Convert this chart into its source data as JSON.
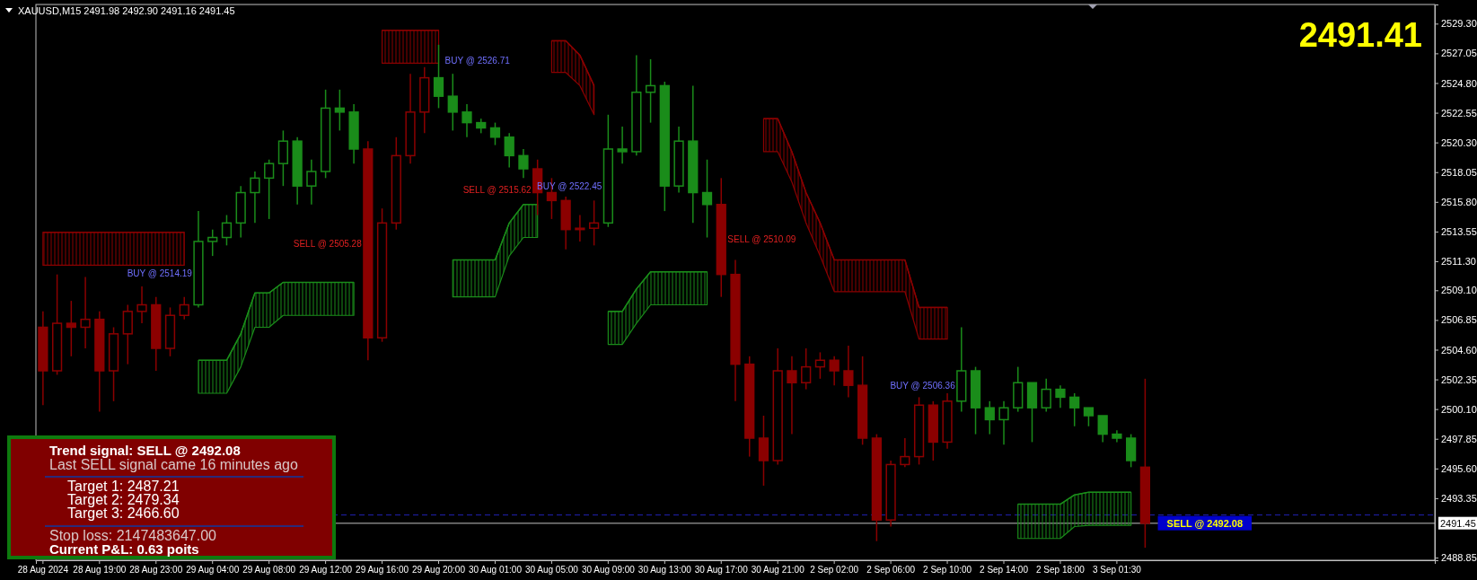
{
  "chart_data": {
    "type": "candlestick",
    "categories": [
      "28 Aug 2024",
      null,
      null,
      null,
      "28 Aug 19:00",
      null,
      null,
      null,
      "28 Aug 23:00",
      null,
      null,
      null,
      "29 Aug 04:00",
      null,
      null,
      null,
      "29 Aug 08:00",
      null,
      null,
      null,
      "29 Aug 12:00",
      null,
      null,
      null,
      "29 Aug 16:00",
      null,
      null,
      null,
      "29 Aug 20:00",
      null,
      null,
      null,
      "30 Aug 01:00",
      null,
      null,
      null,
      "30 Aug 05:00",
      null,
      null,
      null,
      "30 Aug 09:00",
      null,
      null,
      null,
      "30 Aug 13:00",
      null,
      null,
      null,
      "30 Aug 17:00",
      null,
      null,
      null,
      "30 Aug 21:00",
      null,
      null,
      null,
      "2 Sep 02:00",
      null,
      null,
      null,
      "2 Sep 06:00",
      null,
      null,
      null,
      "2 Sep 10:00",
      null,
      null,
      null,
      "2 Sep 14:00",
      null,
      null,
      null,
      "2 Sep 18:00",
      null,
      null,
      null,
      "3 Sep 01:30",
      null,
      null,
      null,
      null,
      null,
      null,
      null,
      null,
      null,
      null,
      null,
      null,
      null,
      null,
      null,
      null,
      null,
      null,
      null,
      null,
      null,
      null
    ],
    "ohlc": [
      [
        2506.3,
        2507.5,
        2500.4,
        2503.0
      ],
      [
        2503.0,
        2510.3,
        2502.7,
        2506.6
      ],
      [
        2506.6,
        2508.3,
        2504.1,
        2506.3
      ],
      [
        2506.3,
        2510.1,
        2504.7,
        2506.9
      ],
      [
        2506.9,
        2507.5,
        2499.9,
        2503.0
      ],
      [
        2503.0,
        2506.3,
        2500.7,
        2505.8
      ],
      [
        2505.8,
        2508.0,
        2503.5,
        2507.5
      ],
      [
        2507.5,
        2509.4,
        2506.6,
        2508.0
      ],
      [
        2508.0,
        2508.6,
        2503.0,
        2504.7
      ],
      [
        2504.7,
        2507.8,
        2504.1,
        2507.2
      ],
      [
        2507.2,
        2508.6,
        2506.9,
        2508.0
      ],
      [
        2508.0,
        2515.1,
        2507.8,
        2512.8
      ],
      [
        2512.8,
        2513.7,
        2511.7,
        2513.1
      ],
      [
        2513.1,
        2514.8,
        2512.5,
        2514.2
      ],
      [
        2514.2,
        2517.0,
        2513.1,
        2516.5
      ],
      [
        2516.5,
        2518.1,
        2514.2,
        2517.6
      ],
      [
        2517.6,
        2519.0,
        2514.5,
        2518.7
      ],
      [
        2518.7,
        2521.2,
        2517.0,
        2520.4
      ],
      [
        2520.4,
        2520.7,
        2515.6,
        2517.0
      ],
      [
        2517.0,
        2519.0,
        2515.6,
        2518.1
      ],
      [
        2518.1,
        2524.3,
        2517.6,
        2522.9
      ],
      [
        2522.9,
        2524.3,
        2521.2,
        2522.6
      ],
      [
        2522.6,
        2523.2,
        2518.7,
        2519.8
      ],
      [
        2519.8,
        2520.4,
        2503.8,
        2505.5
      ],
      [
        2505.5,
        2515.3,
        2505.2,
        2514.2
      ],
      [
        2514.2,
        2520.7,
        2513.7,
        2519.3
      ],
      [
        2519.3,
        2525.5,
        2518.7,
        2522.6
      ],
      [
        2522.6,
        2526.0,
        2521.0,
        2525.2
      ],
      [
        2525.2,
        2527.7,
        2522.9,
        2523.8
      ],
      [
        2523.8,
        2525.5,
        2521.2,
        2522.6
      ],
      [
        2522.6,
        2523.2,
        2520.7,
        2521.8
      ],
      [
        2521.8,
        2522.1,
        2521.0,
        2521.4
      ],
      [
        2521.4,
        2521.8,
        2520.1,
        2520.7
      ],
      [
        2520.7,
        2521.0,
        2518.4,
        2519.3
      ],
      [
        2519.3,
        2519.8,
        2517.6,
        2518.3
      ],
      [
        2518.3,
        2519.0,
        2514.8,
        2516.5
      ],
      [
        2516.5,
        2517.6,
        2514.5,
        2515.9
      ],
      [
        2515.9,
        2516.2,
        2512.2,
        2513.7
      ],
      [
        2513.7,
        2514.8,
        2512.8,
        2513.8
      ],
      [
        2513.8,
        2515.9,
        2512.5,
        2514.2
      ],
      [
        2514.2,
        2522.4,
        2513.9,
        2519.8
      ],
      [
        2519.8,
        2521.5,
        2518.7,
        2519.6
      ],
      [
        2519.6,
        2526.9,
        2519.3,
        2524.1
      ],
      [
        2524.1,
        2526.6,
        2521.8,
        2524.6
      ],
      [
        2524.6,
        2524.9,
        2515.1,
        2517.0
      ],
      [
        2517.0,
        2521.5,
        2516.5,
        2520.4
      ],
      [
        2520.4,
        2524.6,
        2514.2,
        2516.5
      ],
      [
        2516.5,
        2519.0,
        2513.1,
        2515.6
      ],
      [
        2515.6,
        2517.6,
        2508.6,
        2510.3
      ],
      [
        2510.3,
        2511.4,
        2500.7,
        2503.5
      ],
      [
        2503.5,
        2504.1,
        2496.5,
        2497.9
      ],
      [
        2497.9,
        2499.6,
        2494.3,
        2496.2
      ],
      [
        2496.2,
        2504.7,
        2495.9,
        2503.0
      ],
      [
        2503.0,
        2504.1,
        2498.2,
        2502.1
      ],
      [
        2502.1,
        2504.7,
        2501.6,
        2503.3
      ],
      [
        2503.3,
        2504.4,
        2502.4,
        2503.8
      ],
      [
        2503.8,
        2504.1,
        2501.9,
        2503.0
      ],
      [
        2503.0,
        2504.9,
        2501.0,
        2501.9
      ],
      [
        2501.9,
        2504.1,
        2497.4,
        2497.9
      ],
      [
        2497.9,
        2498.2,
        2490.1,
        2491.7
      ],
      [
        2491.7,
        2496.2,
        2491.2,
        2495.9
      ],
      [
        2495.9,
        2497.9,
        2495.7,
        2496.5
      ],
      [
        2496.5,
        2501.0,
        2495.9,
        2500.4
      ],
      [
        2500.4,
        2500.7,
        2496.2,
        2497.6
      ],
      [
        2497.6,
        2501.3,
        2497.1,
        2500.7
      ],
      [
        2500.7,
        2506.3,
        2499.9,
        2503.0
      ],
      [
        2503.0,
        2503.3,
        2498.2,
        2500.2
      ],
      [
        2500.2,
        2500.7,
        2498.2,
        2499.3
      ],
      [
        2499.3,
        2500.7,
        2497.4,
        2500.2
      ],
      [
        2500.2,
        2503.3,
        2499.9,
        2502.1
      ],
      [
        2502.1,
        2502.1,
        2497.6,
        2500.2
      ],
      [
        2500.2,
        2502.4,
        2499.9,
        2501.6
      ],
      [
        2501.6,
        2501.9,
        2500.2,
        2501.0
      ],
      [
        2501.0,
        2501.3,
        2498.8,
        2500.2
      ],
      [
        2500.2,
        2500.2,
        2498.8,
        2499.6
      ],
      [
        2499.6,
        2499.6,
        2497.6,
        2498.2
      ],
      [
        2498.2,
        2498.5,
        2497.6,
        2497.9
      ],
      [
        2497.9,
        2498.2,
        2495.7,
        2496.2
      ],
      [
        2495.7,
        2502.4,
        2489.6,
        2491.45
      ],
      null,
      null,
      null,
      null,
      null,
      null,
      null,
      null,
      null,
      null,
      null,
      null,
      null,
      null,
      null,
      null,
      null,
      null,
      null,
      null
    ],
    "colors": [
      "#8b0000",
      "#8b0000",
      "#8b0000",
      "#8b0000",
      "#8b0000",
      "#8b0000",
      "#8b0000",
      "#8b0000",
      "#8b0000",
      "#8b0000",
      "#8b0000",
      "#1a8c1a",
      "#1a8c1a",
      "#1a8c1a",
      "#1a8c1a",
      "#1a8c1a",
      "#1a8c1a",
      "#1a8c1a",
      "#1a8c1a",
      "#1a8c1a",
      "#1a8c1a",
      "#1a8c1a",
      "#1a8c1a",
      "#8b0000",
      "#8b0000",
      "#8b0000",
      "#8b0000",
      "#8b0000",
      "#1a8c1a",
      "#1a8c1a",
      "#1a8c1a",
      "#1a8c1a",
      "#1a8c1a",
      "#1a8c1a",
      "#1a8c1a",
      "#8b0000",
      "#8b0000",
      "#8b0000",
      "#8b0000",
      "#8b0000",
      "#1a8c1a",
      "#1a8c1a",
      "#1a8c1a",
      "#1a8c1a",
      "#1a8c1a",
      "#1a8c1a",
      "#1a8c1a",
      "#1a8c1a",
      "#8b0000",
      "#8b0000",
      "#8b0000",
      "#8b0000",
      "#8b0000",
      "#8b0000",
      "#8b0000",
      "#8b0000",
      "#8b0000",
      "#8b0000",
      "#8b0000",
      "#8b0000",
      "#8b0000",
      "#8b0000",
      "#8b0000",
      "#8b0000",
      "#8b0000",
      "#1a8c1a",
      "#1a8c1a",
      "#1a8c1a",
      "#1a8c1a",
      "#1a8c1a",
      "#1a8c1a",
      "#1a8c1a",
      "#1a8c1a",
      "#1a8c1a",
      "#1a8c1a",
      "#1a8c1a",
      "#1a8c1a",
      "#1a8c1a",
      "#8b0000",
      null,
      null,
      null,
      null,
      null,
      null,
      null,
      null,
      null,
      null,
      null,
      null,
      null,
      null,
      null,
      null,
      null,
      null,
      null,
      null
    ],
    "series": [
      {
        "type": "line",
        "color": "#8b0000",
        "values": [
          2513.5,
          2513.5,
          2513.5,
          2513.5,
          2513.5,
          2513.5,
          2513.5,
          2513.5,
          2513.5,
          2513.5,
          2513.5,
          null,
          null,
          null,
          null,
          null,
          null,
          null,
          null,
          null,
          null,
          null,
          null,
          null,
          2528.8,
          2528.8,
          2528.8,
          2528.8,
          2528.8,
          null,
          null,
          null,
          null,
          null,
          null,
          null,
          2528.0,
          2528.0,
          2526.9,
          2524.6,
          null,
          null,
          null,
          null,
          null,
          null,
          null,
          null,
          null,
          null,
          null,
          2522.1,
          2522.1,
          2519.6,
          2516.5,
          2514.2,
          2511.4,
          2511.4,
          2511.4,
          2511.4,
          2511.4,
          2511.4,
          2507.8,
          2507.8,
          2507.8,
          null,
          null,
          null,
          null,
          null,
          null,
          null,
          null,
          null,
          null,
          null,
          null,
          null,
          null,
          null,
          null,
          null,
          null,
          null,
          null,
          null,
          null,
          null,
          null,
          null,
          null,
          null,
          null,
          null,
          null,
          null,
          null,
          null,
          null
        ],
        "upper": [
          2513.5,
          2513.5,
          2513.5,
          2513.5,
          2513.5,
          2513.5,
          2513.5,
          2513.5,
          2513.5,
          2513.5,
          2513.5,
          null,
          null,
          null,
          null,
          null,
          null,
          null,
          null,
          null,
          null,
          null,
          null,
          null,
          2528.8,
          2528.8,
          2528.8,
          2528.8,
          2528.8,
          null,
          null,
          null,
          null,
          null,
          null,
          null,
          2528.0,
          2528.0,
          2526.9,
          2524.6,
          null,
          null,
          null,
          null,
          null,
          null,
          null,
          null,
          null,
          null,
          null,
          2522.1,
          2522.1,
          2519.6,
          2516.5,
          2514.2,
          2511.4,
          2511.4,
          2511.4,
          2511.4,
          2511.4,
          2511.4,
          2507.8,
          2507.8,
          2507.8,
          null,
          null,
          null,
          null,
          null,
          null,
          null,
          null,
          null,
          null,
          null,
          null,
          null,
          null,
          null,
          null,
          null,
          null,
          null,
          null,
          null,
          null,
          null,
          null,
          null,
          null,
          null,
          null,
          null,
          null,
          null,
          null,
          null,
          null
        ],
        "lower": [
          2511.0,
          2511.0,
          2511.0,
          2511.0,
          2511.0,
          2511.0,
          2511.0,
          2511.0,
          2511.0,
          2511.0,
          2511.0,
          null,
          null,
          null,
          null,
          null,
          null,
          null,
          null,
          null,
          null,
          null,
          null,
          null,
          2526.3,
          2526.3,
          2526.3,
          2526.3,
          2526.3,
          null,
          null,
          null,
          null,
          null,
          null,
          null,
          2525.6,
          2525.6,
          2524.6,
          2522.4,
          null,
          null,
          null,
          null,
          null,
          null,
          null,
          null,
          null,
          null,
          null,
          2519.6,
          2519.6,
          2517.3,
          2514.2,
          2511.7,
          2509.0,
          2509.0,
          2509.0,
          2509.0,
          2509.0,
          2509.0,
          2505.4,
          2505.4,
          2505.4,
          null,
          null,
          null,
          null,
          null,
          null,
          null,
          null,
          null,
          null,
          null,
          null,
          null,
          null,
          null,
          null,
          null,
          null,
          null,
          null,
          null,
          null,
          null,
          null,
          null,
          null,
          null,
          null,
          null,
          null,
          null,
          null,
          null,
          null
        ]
      },
      {
        "type": "line",
        "color": "#1a8c1a",
        "values": [
          null,
          null,
          null,
          null,
          null,
          null,
          null,
          null,
          null,
          null,
          null,
          2503.8,
          2503.8,
          2503.8,
          2505.8,
          2508.9,
          2508.9,
          2509.7,
          2509.7,
          2509.7,
          2509.7,
          2509.7,
          2509.7,
          null,
          null,
          null,
          null,
          null,
          null,
          2511.4,
          2511.4,
          2511.4,
          2511.4,
          2514.2,
          2515.6,
          2515.6,
          null,
          null,
          null,
          null,
          2507.5,
          2507.5,
          2509.2,
          2510.5,
          2510.5,
          2510.5,
          2510.5,
          2510.5,
          null,
          null,
          null,
          null,
          null,
          null,
          null,
          null,
          null,
          null,
          null,
          null,
          null,
          null,
          null,
          null,
          null,
          null,
          null,
          null,
          null,
          2492.9,
          2492.9,
          2492.9,
          2492.9,
          2493.6,
          2493.8,
          2493.8,
          2493.8,
          2493.8,
          null,
          null,
          null,
          null,
          null,
          null,
          null,
          null,
          null,
          null,
          null,
          null,
          null,
          null,
          null,
          null,
          null,
          null,
          null,
          null,
          null
        ],
        "upper": [
          null,
          null,
          null,
          null,
          null,
          null,
          null,
          null,
          null,
          null,
          null,
          2503.8,
          2503.8,
          2503.8,
          2505.8,
          2508.9,
          2508.9,
          2509.7,
          2509.7,
          2509.7,
          2509.7,
          2509.7,
          2509.7,
          null,
          null,
          null,
          null,
          null,
          null,
          2511.4,
          2511.4,
          2511.4,
          2511.4,
          2514.2,
          2515.6,
          2515.6,
          null,
          null,
          null,
          null,
          2507.5,
          2507.5,
          2509.2,
          2510.5,
          2510.5,
          2510.5,
          2510.5,
          2510.5,
          null,
          null,
          null,
          null,
          null,
          null,
          null,
          null,
          null,
          null,
          null,
          null,
          null,
          null,
          null,
          null,
          null,
          null,
          null,
          null,
          null,
          2492.9,
          2492.9,
          2492.9,
          2492.9,
          2493.6,
          2493.8,
          2493.8,
          2493.8,
          2493.8,
          null,
          null,
          null,
          null,
          null,
          null,
          null,
          null,
          null,
          null,
          null,
          null,
          null,
          null,
          null,
          null,
          null,
          null,
          null,
          null,
          null
        ],
        "lower": [
          null,
          null,
          null,
          null,
          null,
          null,
          null,
          null,
          null,
          null,
          null,
          2501.3,
          2501.3,
          2501.3,
          2503.3,
          2506.3,
          2506.3,
          2507.2,
          2507.2,
          2507.2,
          2507.2,
          2507.2,
          2507.2,
          null,
          null,
          null,
          null,
          null,
          null,
          2508.6,
          2508.6,
          2508.6,
          2508.6,
          2511.7,
          2513.1,
          2513.1,
          null,
          null,
          null,
          null,
          2505.0,
          2505.0,
          2506.6,
          2508.0,
          2508.0,
          2508.0,
          2508.0,
          2508.0,
          null,
          null,
          null,
          null,
          null,
          null,
          null,
          null,
          null,
          null,
          null,
          null,
          null,
          null,
          null,
          null,
          null,
          null,
          null,
          null,
          null,
          2490.3,
          2490.3,
          2490.3,
          2490.3,
          2491.2,
          2491.3,
          2491.3,
          2491.3,
          2491.3,
          null,
          null,
          null,
          null,
          null,
          null,
          null,
          null,
          null,
          null,
          null,
          null,
          null,
          null,
          null,
          null,
          null,
          null,
          null,
          null,
          null
        ]
      }
    ],
    "ylim": [
      2488.65,
      2530.75
    ],
    "yticks": [
      {
        "value": 2488.85,
        "label": "2488.85"
      },
      {
        "value": 2493.35,
        "label": "2493.35"
      },
      {
        "value": 2495.6,
        "label": "2495.60"
      },
      {
        "value": 2497.85,
        "label": "2497.85"
      },
      {
        "value": 2500.1,
        "label": "2500.10"
      },
      {
        "value": 2502.35,
        "label": "2502.35"
      },
      {
        "value": 2504.6,
        "label": "2504.60"
      },
      {
        "value": 2506.85,
        "label": "2506.85"
      },
      {
        "value": 2509.1,
        "label": "2509.10"
      },
      {
        "value": 2511.3,
        "label": "2511.30"
      },
      {
        "value": 2513.55,
        "label": "2513.55"
      },
      {
        "value": 2515.8,
        "label": "2515.80"
      },
      {
        "value": 2518.05,
        "label": "2518.05"
      },
      {
        "value": 2520.3,
        "label": "2520.30"
      },
      {
        "value": 2522.55,
        "label": "2522.55"
      },
      {
        "value": 2524.8,
        "label": "2524.80"
      },
      {
        "value": 2527.05,
        "label": "2527.05"
      },
      {
        "value": 2529.3,
        "label": "2529.30"
      }
    ],
    "ref_lines": [
      {
        "axis": "y",
        "value": 2491.45,
        "label": "2491.45",
        "color": "#c0c0c0"
      },
      {
        "axis": "y",
        "value": 2492.08,
        "color": "#2020b0",
        "line_style": "dashed"
      }
    ],
    "annotations": [
      "XAUUSD,M15  2491.98 2492.90 2491.16 2491.45",
      "2491.41",
      "Trend signal: SELL @ 2492.08",
      "Last SELL signal came 16 minutes ago",
      "Target 1: 2487.21",
      "Target 2: 2479.34",
      "Target 3: 2466.60",
      "Stop loss: 2147483647.00",
      "Current P&L: 0.63 poits",
      "BUY @ 2514.19",
      "SELL @ 2505.28",
      "BUY @ 2526.71",
      "SELL @ 2515.62",
      "BUY @ 2522.45",
      "SELL @ 2510.09",
      "BUY @ 2506.36",
      "SELL @ 2492.08"
    ]
  }
}
